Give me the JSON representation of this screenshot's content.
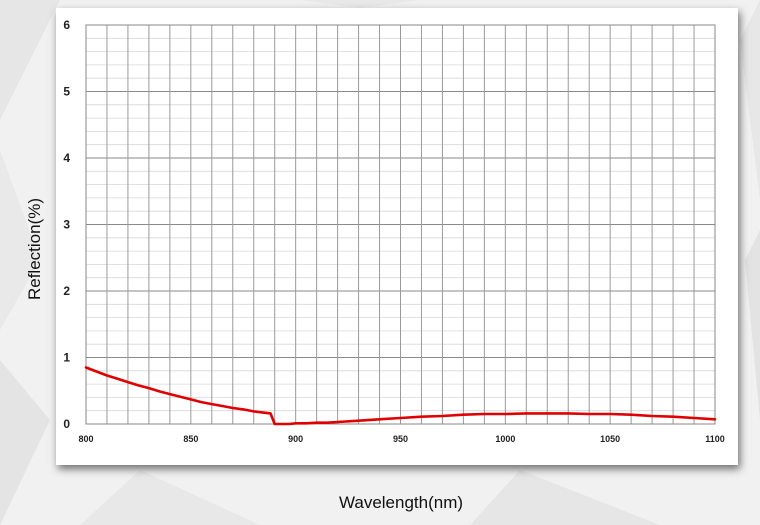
{
  "chart_data": {
    "type": "line",
    "xlabel": "Wavelength(nm)",
    "ylabel": "Reflection(%)",
    "xlim": [
      800,
      1100
    ],
    "ylim": [
      0,
      6
    ],
    "x_ticks": [
      "800",
      "850",
      "900",
      "950",
      "1000",
      "1050",
      "1100"
    ],
    "y_ticks": [
      "0",
      "1",
      "2",
      "3",
      "4",
      "5",
      "6"
    ],
    "grid": true,
    "series": [
      {
        "color": "#e00000",
        "x": [
          800,
          805,
          810,
          815,
          820,
          825,
          830,
          835,
          840,
          845,
          850,
          855,
          860,
          865,
          870,
          875,
          880,
          885,
          888,
          890,
          893,
          897,
          900,
          905,
          910,
          915,
          920,
          930,
          940,
          950,
          960,
          970,
          980,
          990,
          1000,
          1010,
          1020,
          1030,
          1040,
          1050,
          1060,
          1070,
          1080,
          1090,
          1100
        ],
        "y": [
          0.85,
          0.79,
          0.73,
          0.68,
          0.63,
          0.58,
          0.54,
          0.49,
          0.45,
          0.41,
          0.37,
          0.33,
          0.3,
          0.27,
          0.24,
          0.22,
          0.19,
          0.17,
          0.16,
          0.0,
          0.0,
          0.0,
          0.01,
          0.01,
          0.02,
          0.02,
          0.03,
          0.05,
          0.07,
          0.09,
          0.11,
          0.12,
          0.14,
          0.15,
          0.15,
          0.16,
          0.16,
          0.16,
          0.15,
          0.15,
          0.14,
          0.12,
          0.11,
          0.09,
          0.07
        ]
      }
    ]
  }
}
